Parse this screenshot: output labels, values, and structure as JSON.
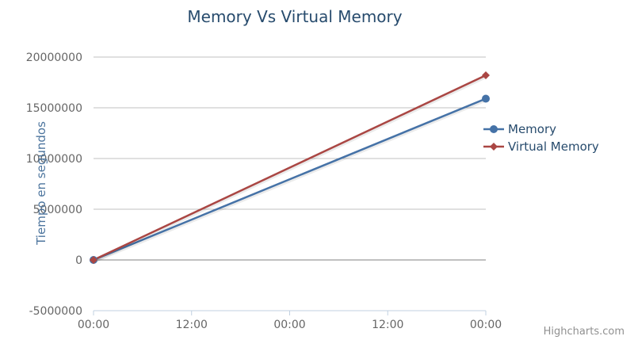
{
  "chart_data": {
    "type": "line",
    "title": "Memory Vs Virtual Memory",
    "ylabel": "Tiempo en segundos",
    "xlabel": "",
    "x_tick_labels": [
      "00:00",
      "12:00",
      "00:00",
      "12:00",
      "00:00"
    ],
    "y_tick_labels": [
      "20000000",
      "15000000",
      "10000000",
      "5000000",
      "0",
      "-5000000"
    ],
    "ylim": [
      -5000000,
      20000000
    ],
    "y_ticks": [
      20000000,
      15000000,
      10000000,
      5000000,
      0,
      -5000000
    ],
    "x_range_ticks": [
      0,
      4
    ],
    "grid": true,
    "legend_position": "right",
    "series": [
      {
        "name": "Memory",
        "color": "#4572a7",
        "marker": "circle",
        "x": [
          0,
          4
        ],
        "values": [
          0,
          15900000
        ]
      },
      {
        "name": "Virtual Memory",
        "color": "#aa4643",
        "marker": "diamond",
        "x": [
          0,
          4
        ],
        "values": [
          0,
          18200000
        ]
      }
    ],
    "credits": "Highcharts.com"
  }
}
